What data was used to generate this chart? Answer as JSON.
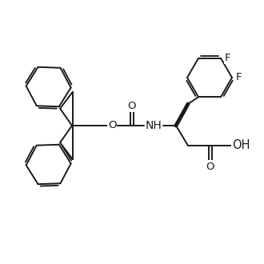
{
  "background_color": "#ffffff",
  "line_color": "#1a1a1a",
  "line_width": 1.4,
  "font_size": 9.5,
  "figsize": [
    3.3,
    3.3
  ],
  "dpi": 100,
  "xlim": [
    0,
    330
  ],
  "ylim": [
    0,
    330
  ]
}
